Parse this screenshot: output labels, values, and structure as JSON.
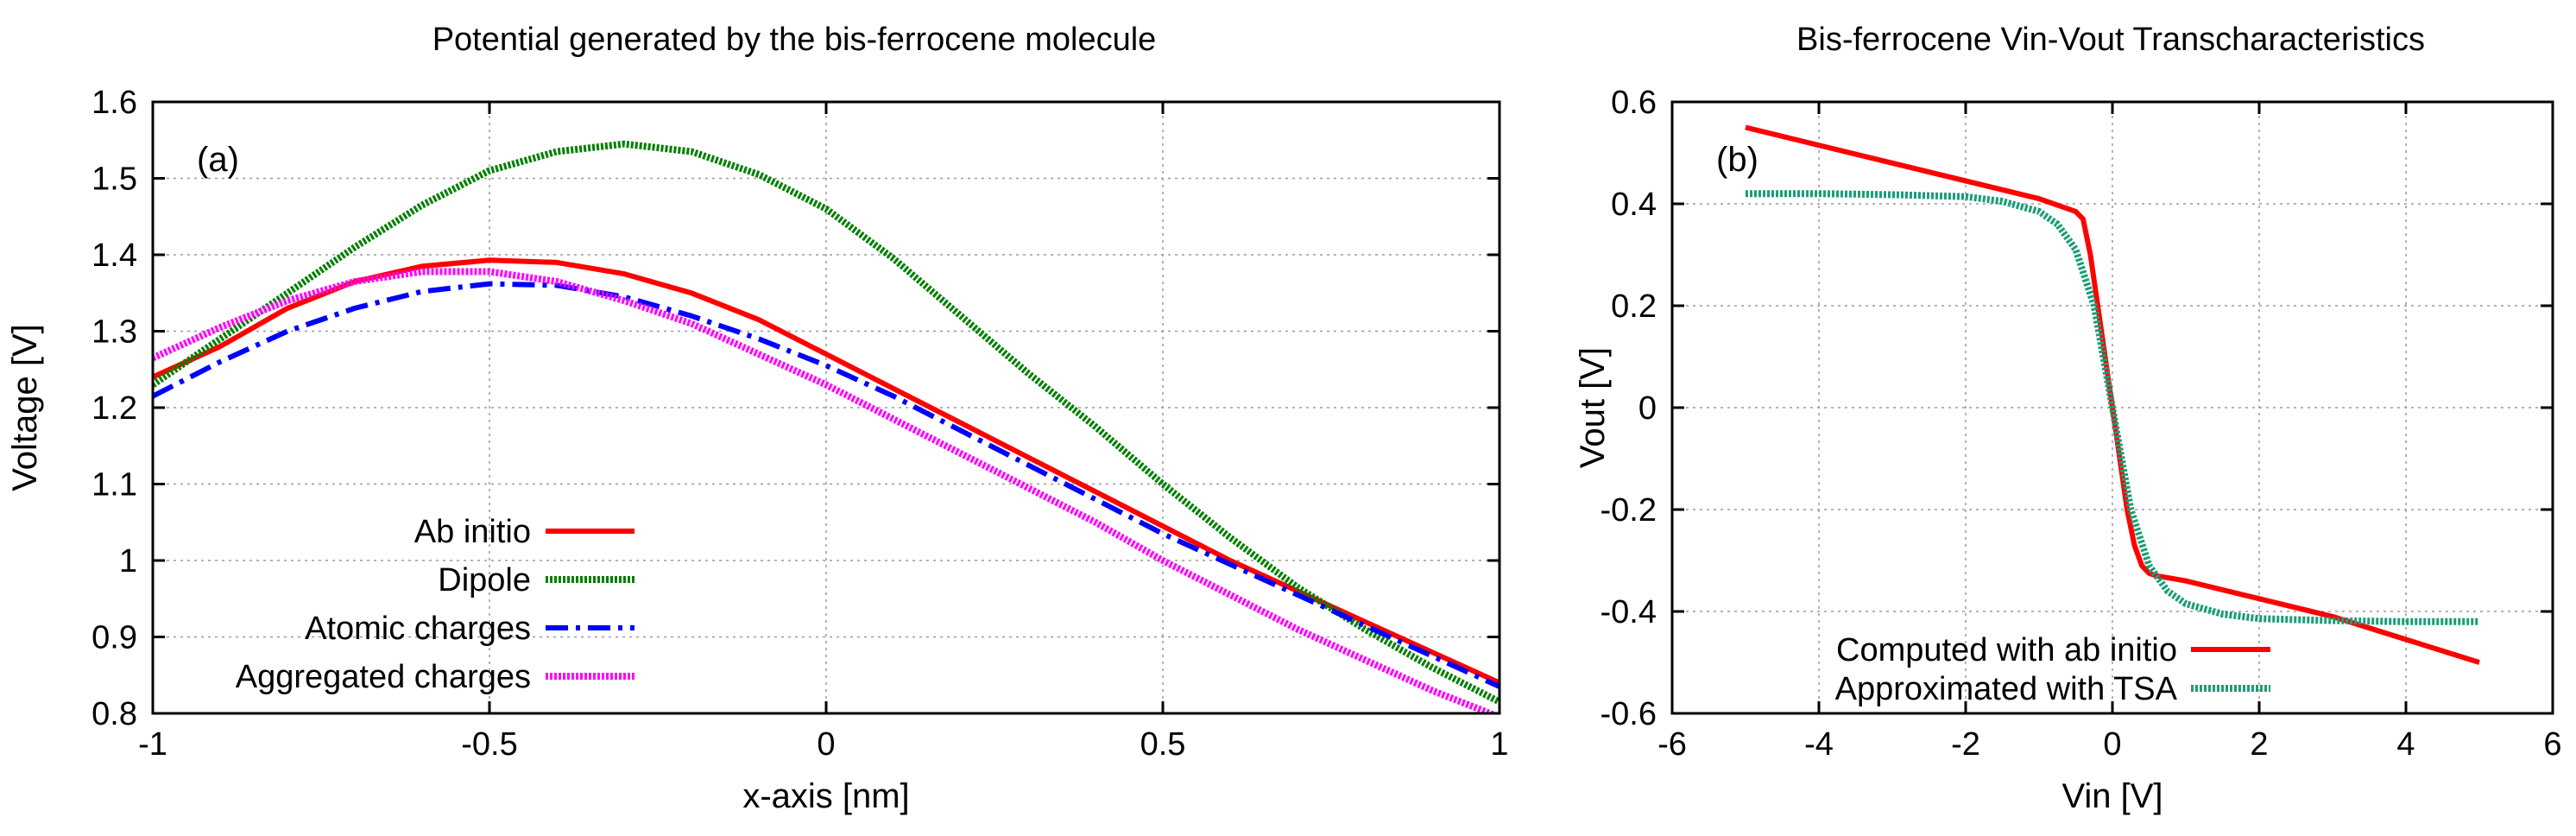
{
  "chart_data": [
    {
      "type": "line",
      "panel": "a",
      "title": "Potential generated by the bis-ferrocene molecule",
      "xlabel": "x-axis [nm]",
      "ylabel": "Voltage [V]",
      "xlim": [
        -1,
        1
      ],
      "ylim": [
        0.8,
        1.6
      ],
      "xticks": [
        -1,
        -0.5,
        0,
        0.5,
        1
      ],
      "xtick_labels": [
        "-1",
        "-0.5",
        "0",
        "0.5",
        "1"
      ],
      "yticks": [
        0.8,
        0.9,
        1.0,
        1.1,
        1.2,
        1.3,
        1.4,
        1.5,
        1.6
      ],
      "ytick_labels": [
        "0.8",
        "0.9",
        "1",
        "1.1",
        "1.2",
        "1.3",
        "1.4",
        "1.5",
        "1.6"
      ],
      "grid": true,
      "annotation": "(a)",
      "legend_position": "bottom-left",
      "series": [
        {
          "name": "Ab initio",
          "color": "#ff0000",
          "style": "solid",
          "x": [
            -1,
            -0.9,
            -0.8,
            -0.7,
            -0.6,
            -0.5,
            -0.4,
            -0.3,
            -0.2,
            -0.1,
            0,
            0.1,
            0.2,
            0.3,
            0.4,
            0.5,
            0.6,
            0.7,
            0.8,
            0.9,
            1
          ],
          "y": [
            1.24,
            1.28,
            1.33,
            1.365,
            1.385,
            1.393,
            1.39,
            1.375,
            1.35,
            1.315,
            1.27,
            1.225,
            1.18,
            1.135,
            1.09,
            1.045,
            1.0,
            0.96,
            0.92,
            0.88,
            0.84
          ]
        },
        {
          "name": "Dipole",
          "color": "#008000",
          "style": "dotted",
          "x": [
            -1,
            -0.9,
            -0.8,
            -0.7,
            -0.6,
            -0.5,
            -0.4,
            -0.3,
            -0.2,
            -0.1,
            0,
            0.1,
            0.2,
            0.3,
            0.4,
            0.5,
            0.6,
            0.7,
            0.8,
            0.9,
            1
          ],
          "y": [
            1.23,
            1.29,
            1.35,
            1.41,
            1.465,
            1.51,
            1.535,
            1.545,
            1.535,
            1.505,
            1.46,
            1.395,
            1.32,
            1.245,
            1.175,
            1.1,
            1.03,
            0.965,
            0.91,
            0.86,
            0.815
          ]
        },
        {
          "name": "Atomic charges",
          "color": "#0000ff",
          "style": "dash-dot",
          "x": [
            -1,
            -0.9,
            -0.8,
            -0.7,
            -0.6,
            -0.5,
            -0.4,
            -0.3,
            -0.2,
            -0.1,
            0,
            0.1,
            0.2,
            0.3,
            0.4,
            0.5,
            0.6,
            0.7,
            0.8,
            0.9,
            1
          ],
          "y": [
            1.215,
            1.26,
            1.3,
            1.33,
            1.352,
            1.362,
            1.36,
            1.345,
            1.32,
            1.29,
            1.255,
            1.215,
            1.17,
            1.125,
            1.08,
            1.035,
            0.995,
            0.955,
            0.915,
            0.875,
            0.835
          ]
        },
        {
          "name": "Aggregated charges",
          "color": "#ff00ff",
          "style": "dotted",
          "x": [
            -1,
            -0.9,
            -0.8,
            -0.7,
            -0.6,
            -0.5,
            -0.4,
            -0.3,
            -0.2,
            -0.1,
            0,
            0.1,
            0.2,
            0.3,
            0.4,
            0.5,
            0.6,
            0.7,
            0.8,
            0.9,
            1
          ],
          "y": [
            1.265,
            1.305,
            1.34,
            1.365,
            1.378,
            1.378,
            1.365,
            1.34,
            1.31,
            1.27,
            1.23,
            1.185,
            1.14,
            1.095,
            1.05,
            1.0,
            0.955,
            0.91,
            0.87,
            0.83,
            0.795
          ]
        }
      ]
    },
    {
      "type": "line",
      "panel": "b",
      "title": "Bis-ferrocene Vin-Vout Transcharacteristics",
      "xlabel": "Vin [V]",
      "ylabel": "Vout [V]",
      "xlim": [
        -6,
        6
      ],
      "ylim": [
        -0.6,
        0.6
      ],
      "xticks": [
        -6,
        -4,
        -2,
        0,
        2,
        4,
        6
      ],
      "xtick_labels": [
        "-6",
        "-4",
        "-2",
        "0",
        "2",
        "4",
        "6"
      ],
      "yticks": [
        -0.6,
        -0.4,
        -0.2,
        0,
        0.2,
        0.4,
        0.6
      ],
      "ytick_labels": [
        "-0.6",
        "-0.4",
        "-0.2",
        "0",
        "0.2",
        "0.4",
        "0.6"
      ],
      "grid": true,
      "annotation": "(b)",
      "legend_position": "bottom-left",
      "series": [
        {
          "name": "Computed with ab initio",
          "color": "#ff0000",
          "style": "solid",
          "x": [
            -5,
            -3,
            -1,
            -0.6,
            -0.5,
            -0.4,
            -0.3,
            -0.2,
            -0.1,
            0,
            0.1,
            0.2,
            0.3,
            0.4,
            0.5,
            0.6,
            1,
            3,
            5
          ],
          "y": [
            0.55,
            0.48,
            0.41,
            0.39,
            0.385,
            0.37,
            0.3,
            0.2,
            0.1,
            0.0,
            -0.1,
            -0.2,
            -0.27,
            -0.31,
            -0.325,
            -0.33,
            -0.34,
            -0.41,
            -0.5
          ]
        },
        {
          "name": "Approximated with TSA",
          "color": "#1a9e78",
          "style": "dotted",
          "x": [
            -5,
            -4,
            -3,
            -2,
            -1.5,
            -1,
            -0.75,
            -0.5,
            -0.25,
            0,
            0.25,
            0.5,
            0.75,
            1,
            1.5,
            2,
            3,
            4,
            5
          ],
          "y": [
            0.42,
            0.42,
            0.418,
            0.414,
            0.405,
            0.385,
            0.36,
            0.31,
            0.2,
            0.0,
            -0.2,
            -0.31,
            -0.36,
            -0.385,
            -0.405,
            -0.414,
            -0.418,
            -0.42,
            -0.42
          ]
        }
      ]
    }
  ]
}
